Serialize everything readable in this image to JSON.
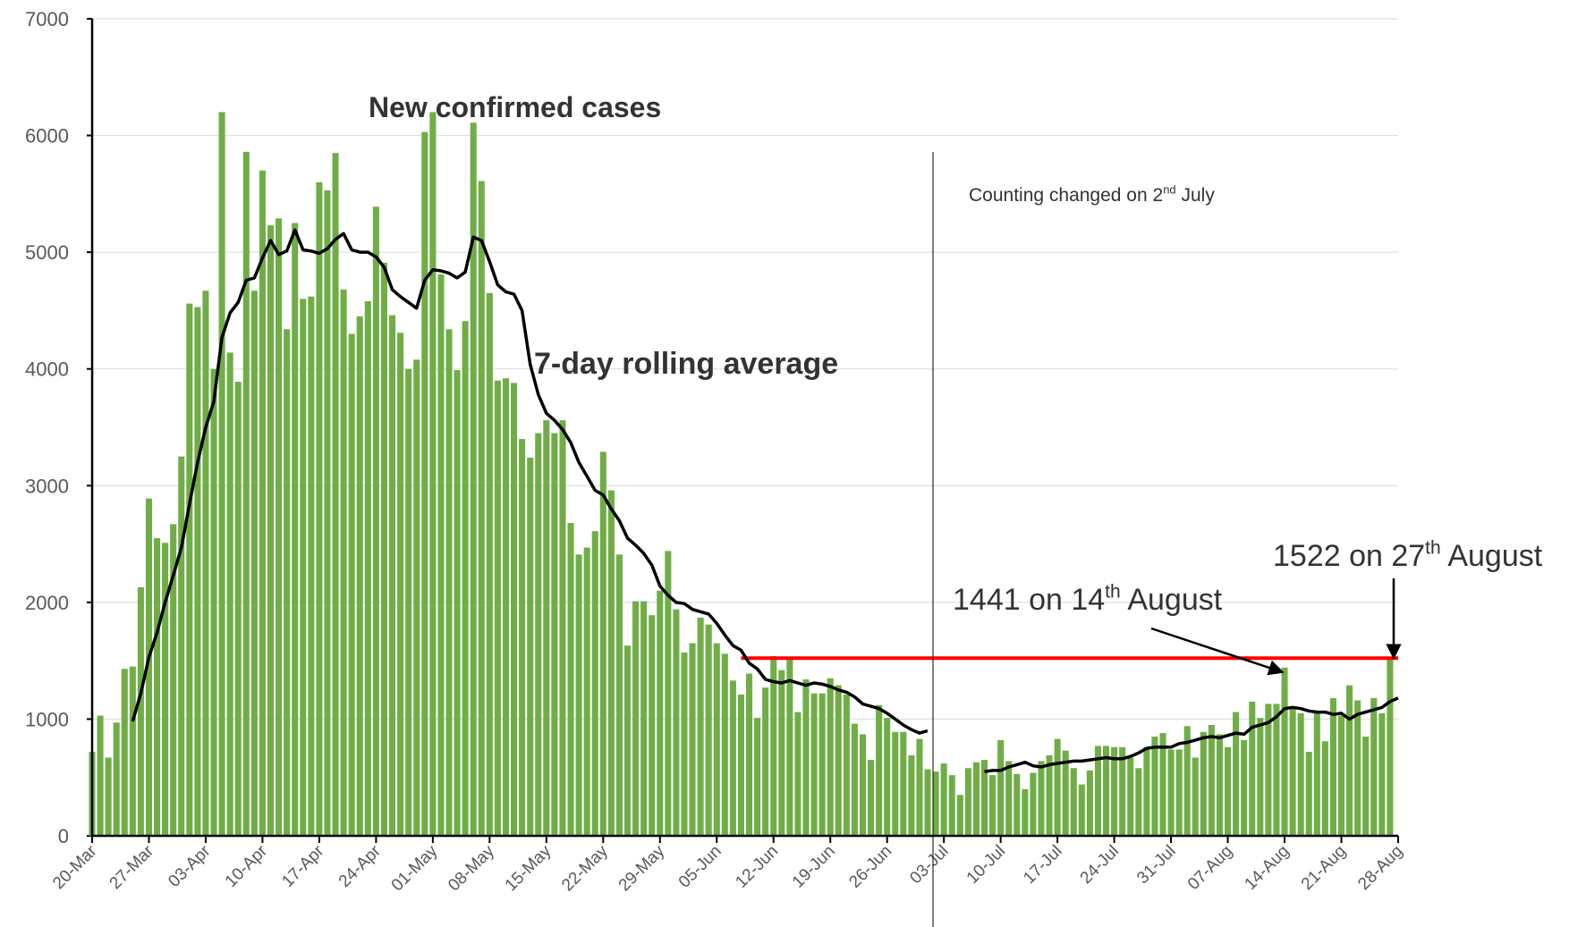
{
  "chart_data": {
    "type": "bar_line",
    "categories": [
      "20-Mar",
      null,
      null,
      null,
      null,
      null,
      null,
      "27-Mar",
      null,
      null,
      null,
      null,
      null,
      null,
      "03-Apr",
      null,
      null,
      null,
      null,
      null,
      null,
      "10-Apr",
      null,
      null,
      null,
      null,
      null,
      null,
      "17-Apr",
      null,
      null,
      null,
      null,
      null,
      null,
      "24-Apr",
      null,
      null,
      null,
      null,
      null,
      null,
      "01-May",
      null,
      null,
      null,
      null,
      null,
      null,
      "08-May",
      null,
      null,
      null,
      null,
      null,
      null,
      "15-May",
      null,
      null,
      null,
      null,
      null,
      null,
      "22-May",
      null,
      null,
      null,
      null,
      null,
      null,
      "29-May",
      null,
      null,
      null,
      null,
      null,
      null,
      "05-Jun",
      null,
      null,
      null,
      null,
      null,
      null,
      "12-Jun",
      null,
      null,
      null,
      null,
      null,
      null,
      "19-Jun",
      null,
      null,
      null,
      null,
      null,
      null,
      "26-Jun",
      null,
      null,
      null,
      null,
      null,
      null,
      "03-Jul",
      null,
      null,
      null,
      null,
      null,
      null,
      "10-Jul",
      null,
      null,
      null,
      null,
      null,
      null,
      "17-Jul",
      null,
      null,
      null,
      null,
      null,
      null,
      "24-Jul",
      null,
      null,
      null,
      null,
      null,
      null,
      "31-Jul",
      null,
      null,
      null,
      null,
      null,
      null,
      "07-Aug",
      null,
      null,
      null,
      null,
      null,
      null,
      "14-Aug",
      null,
      null,
      null,
      null,
      null,
      null,
      "21-Aug",
      null,
      null,
      null,
      null,
      null,
      null,
      "28-Aug"
    ],
    "series": [
      {
        "name": "New confirmed cases",
        "color": "#70ad47",
        "kind": "bar",
        "values": [
          720,
          1030,
          670,
          970,
          1430,
          1450,
          2130,
          2890,
          2550,
          2510,
          2670,
          3250,
          4560,
          4530,
          4670,
          4000,
          6200,
          4140,
          3890,
          5860,
          4670,
          5700,
          5230,
          5290,
          4340,
          5250,
          4600,
          4620,
          5600,
          5530,
          5850,
          4680,
          4300,
          4450,
          4580,
          5390,
          4910,
          4460,
          4310,
          4000,
          4080,
          6030,
          6200,
          4810,
          4340,
          3990,
          4410,
          6110,
          5610,
          4650,
          3900,
          3920,
          3880,
          3400,
          3240,
          3450,
          3560,
          3450,
          3560,
          2680,
          2410,
          2470,
          2610,
          3290,
          2960,
          2410,
          1630,
          2010,
          2010,
          1890,
          2100,
          2440,
          1940,
          1570,
          1650,
          1870,
          1810,
          1650,
          1560,
          1330,
          1210,
          1390,
          1010,
          1270,
          1540,
          1420,
          1510,
          1060,
          1340,
          1220,
          1220,
          1350,
          1290,
          1210,
          960,
          870,
          650,
          1120,
          1010,
          890,
          890,
          690,
          830,
          570,
          550,
          620,
          520,
          350,
          580,
          630,
          650,
          520,
          820,
          640,
          530,
          400,
          540,
          640,
          690,
          830,
          730,
          580,
          440,
          560,
          770,
          770,
          760,
          760,
          670,
          580,
          760,
          850,
          880,
          740,
          740,
          940,
          670,
          890,
          950,
          870,
          760,
          1060,
          820,
          1150,
          1010,
          1130,
          1130,
          1441,
          1090,
          1050,
          720,
          1050,
          810,
          1180,
          1030,
          1290,
          1160,
          850,
          1180,
          1050,
          1522,
          null
        ]
      },
      {
        "name": "7-day rolling average",
        "color": "#000000",
        "kind": "line",
        "values": [
          null,
          null,
          null,
          null,
          null,
          980,
          1220,
          1530,
          1740,
          2000,
          2230,
          2470,
          2840,
          3200,
          3500,
          3720,
          4270,
          4480,
          4570,
          4760,
          4780,
          4950,
          5100,
          4980,
          5010,
          5190,
          5020,
          5010,
          4990,
          5030,
          5110,
          5160,
          5020,
          5000,
          5000,
          4960,
          4870,
          4680,
          4620,
          4570,
          4520,
          4760,
          4850,
          4840,
          4820,
          4780,
          4830,
          5130,
          5100,
          4920,
          4720,
          4660,
          4640,
          4500,
          4040,
          3780,
          3620,
          3560,
          3480,
          3370,
          3200,
          3080,
          2960,
          2920,
          2800,
          2700,
          2550,
          2490,
          2420,
          2320,
          2140,
          2060,
          2000,
          1990,
          1940,
          1920,
          1900,
          1820,
          1720,
          1630,
          1590,
          1480,
          1430,
          1340,
          1320,
          1310,
          1330,
          1310,
          1290,
          1310,
          1300,
          1280,
          1250,
          1230,
          1190,
          1130,
          1110,
          1090,
          1050,
          1000,
          950,
          910,
          880,
          900,
          null,
          null,
          null,
          null,
          null,
          null,
          550,
          560,
          560,
          590,
          610,
          630,
          600,
          590,
          610,
          620,
          630,
          640,
          640,
          650,
          660,
          670,
          660,
          660,
          680,
          710,
          750,
          760,
          760,
          760,
          790,
          800,
          820,
          840,
          850,
          840,
          860,
          880,
          870,
          930,
          950,
          970,
          1020,
          1090,
          1100,
          1090,
          1070,
          1060,
          1060,
          1040,
          1050,
          1000,
          1040,
          1060,
          1080,
          1100,
          1150,
          1180
        ]
      }
    ],
    "ylim": [
      0,
      7000
    ],
    "yticks": [
      0,
      1000,
      2000,
      3000,
      4000,
      5000,
      6000,
      7000
    ],
    "grid": true,
    "reference_line": {
      "value": 1522,
      "color": "#ff0000"
    },
    "annotations": [
      {
        "text": "Counting changed on 2",
        "sup": "nd",
        "rest": " July"
      },
      {
        "text": "1441 on 14",
        "sup": "th",
        "rest": " August"
      },
      {
        "text": "1522 on 27",
        "sup": "th",
        "rest": " August"
      }
    ]
  }
}
